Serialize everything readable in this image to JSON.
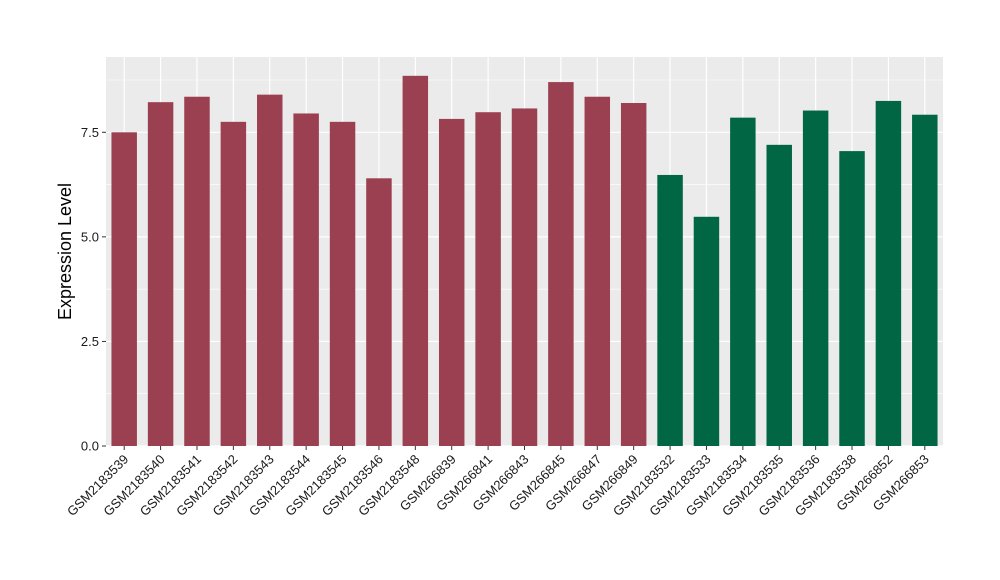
{
  "chart_data": {
    "type": "bar",
    "title": "",
    "xlabel": "",
    "ylabel": "Expression Level",
    "ylim": [
      0,
      9.3
    ],
    "yticks": [
      0.0,
      2.5,
      5.0,
      7.5
    ],
    "ytick_labels": [
      "0.0",
      "2.5",
      "5.0",
      "7.5"
    ],
    "grid": true,
    "legend": "none",
    "colors": {
      "group_a": "#9a4050",
      "group_b": "#006644",
      "panel_bg": "#ebebeb",
      "grid": "#ffffff"
    },
    "categories": [
      "GSM2183539",
      "GSM2183540",
      "GSM2183541",
      "GSM2183542",
      "GSM2183543",
      "GSM2183544",
      "GSM2183545",
      "GSM2183546",
      "GSM2183548",
      "GSM266839",
      "GSM266841",
      "GSM266843",
      "GSM266845",
      "GSM266847",
      "GSM266849",
      "GSM2183532",
      "GSM2183533",
      "GSM2183534",
      "GSM2183535",
      "GSM2183536",
      "GSM2183538",
      "GSM266852",
      "GSM266853"
    ],
    "values": [
      7.5,
      8.22,
      8.35,
      7.75,
      8.4,
      7.95,
      7.75,
      6.4,
      8.85,
      7.82,
      7.98,
      8.07,
      8.7,
      8.35,
      8.2,
      6.48,
      5.48,
      7.85,
      7.2,
      8.02,
      7.05,
      8.25,
      7.92
    ],
    "groups": [
      "a",
      "a",
      "a",
      "a",
      "a",
      "a",
      "a",
      "a",
      "a",
      "a",
      "a",
      "a",
      "a",
      "a",
      "a",
      "b",
      "b",
      "b",
      "b",
      "b",
      "b",
      "b",
      "b"
    ]
  }
}
